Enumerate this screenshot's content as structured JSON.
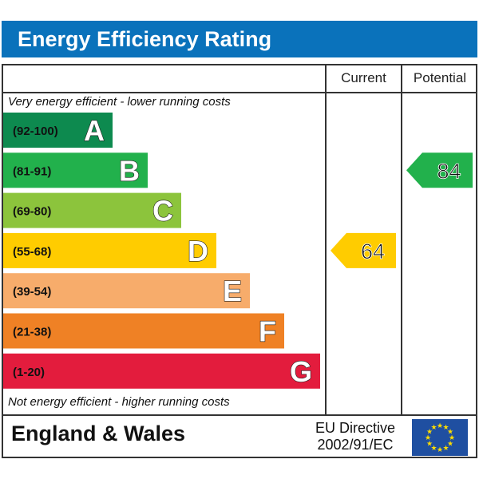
{
  "header": {
    "title": "Energy Efficiency Rating"
  },
  "columns": {
    "current": "Current",
    "potential": "Potential"
  },
  "notes": {
    "top": "Very energy efficient - lower running costs",
    "bottom": "Not energy efficient - higher running costs"
  },
  "footer": {
    "region": "England & Wales",
    "directive_line1": "EU Directive",
    "directive_line2": "2002/91/EC"
  },
  "colors": {
    "header": "#0a72bb",
    "A": "#0d8a4f",
    "B": "#22b14c",
    "C": "#8cc43c",
    "D": "#ffcc00",
    "E": "#f7ac6b",
    "F": "#ef8125",
    "G": "#e31c3d",
    "eu_flag": "#1f4fa1",
    "eu_star": "#ffdd00"
  },
  "chart_data": {
    "type": "bar",
    "title": "Energy Efficiency Rating",
    "bands": [
      {
        "letter": "A",
        "range": "(92-100)",
        "color": "#0d8a4f"
      },
      {
        "letter": "B",
        "range": "(81-91)",
        "color": "#22b14c"
      },
      {
        "letter": "C",
        "range": "(69-80)",
        "color": "#8cc43c"
      },
      {
        "letter": "D",
        "range": "(55-68)",
        "color": "#ffcc00"
      },
      {
        "letter": "E",
        "range": "(39-54)",
        "color": "#f7ac6b"
      },
      {
        "letter": "F",
        "range": "(21-38)",
        "color": "#ef8125"
      },
      {
        "letter": "G",
        "range": "(1-20)",
        "color": "#e31c3d"
      }
    ],
    "current": {
      "value": 64,
      "band": "D",
      "color": "#ffcc00"
    },
    "potential": {
      "value": 84,
      "band": "B",
      "color": "#22b14c"
    }
  }
}
